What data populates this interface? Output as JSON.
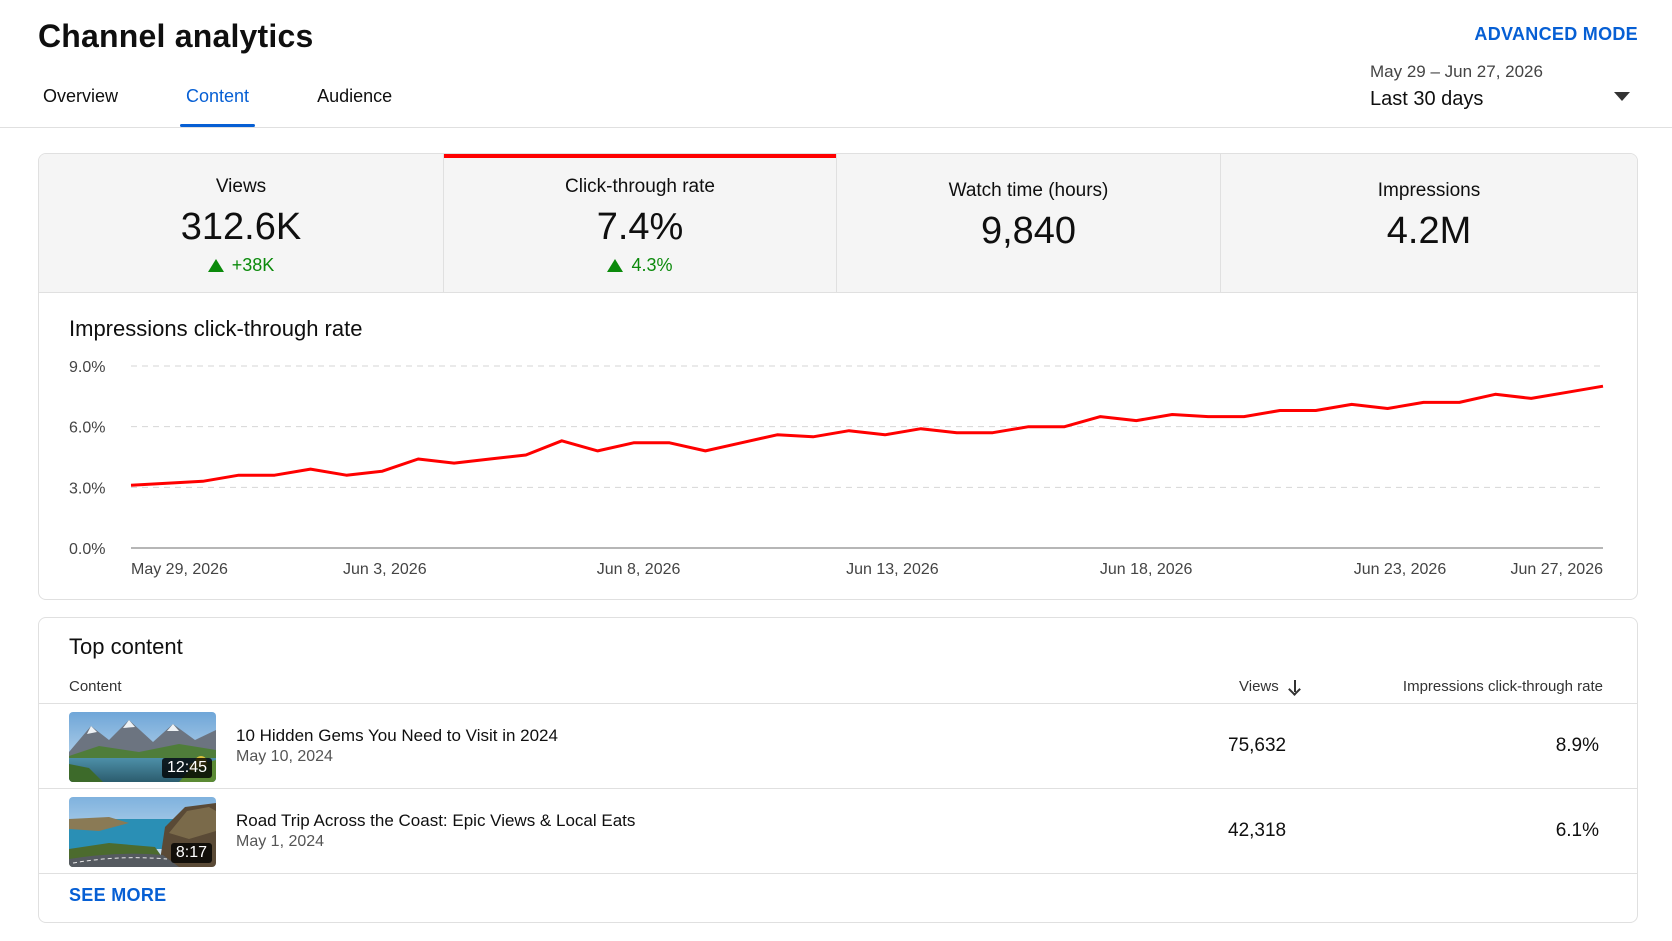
{
  "header": {
    "title": "Channel analytics",
    "advanced_mode": "ADVANCED MODE",
    "tabs": [
      {
        "label": "Overview",
        "active": false
      },
      {
        "label": "Content",
        "active": true
      },
      {
        "label": "Audience",
        "active": false
      }
    ],
    "date_picker": {
      "range": "May 29 – Jun 27, 2026",
      "preset": "Last 30 days"
    }
  },
  "metrics": [
    {
      "label": "Views",
      "value": "312.6K",
      "change": "+38K",
      "trend": "up"
    },
    {
      "label": "Click-through rate",
      "value": "7.4%",
      "change": "4.3%",
      "trend": "up",
      "selected": true
    },
    {
      "label": "Watch time (hours)",
      "value": "9,840"
    },
    {
      "label": "Impressions",
      "value": "4.2M"
    }
  ],
  "colors": {
    "accent": "#065fd4",
    "line": "#ff0000",
    "positive": "#0b8a0b"
  },
  "chart_data": {
    "type": "line",
    "title": "Impressions click-through rate",
    "y_tick_labels": [
      "9.0%",
      "6.0%",
      "3.0%",
      "0.0%"
    ],
    "y_ticks": [
      9,
      6,
      3,
      0
    ],
    "ylim": [
      0,
      9
    ],
    "x_tick_labels": [
      "May 29, 2026",
      "Jun 3, 2026",
      "Jun 8, 2026",
      "Jun 13, 2026",
      "Jun 18, 2026",
      "Jun 23, 2026",
      "Jun 27, 2026"
    ],
    "x_tick_days": [
      0,
      5,
      10,
      15,
      20,
      25,
      29
    ],
    "grid": true,
    "series": [
      {
        "values": [
          3.1,
          3.2,
          3.3,
          3.6,
          3.6,
          3.9,
          3.6,
          3.8,
          4.4,
          4.2,
          4.4,
          4.6,
          5.3,
          4.8,
          5.2,
          5.2,
          4.8,
          5.2,
          5.6,
          5.5,
          5.8,
          5.6,
          5.9,
          5.7,
          5.7,
          6.0,
          6.0,
          6.5,
          6.3,
          6.6,
          6.5,
          6.5,
          6.8,
          6.8,
          7.1,
          6.9,
          7.2,
          7.2,
          7.6,
          7.4,
          7.7,
          8.0
        ]
      }
    ]
  },
  "top_content": {
    "title": "Top content",
    "columns": {
      "content": "Content",
      "views": "Views",
      "ctr": "Impressions click-through rate"
    },
    "rows": [
      {
        "title": "10 Hidden Gems You Need to Visit in 2024",
        "date": "May 10, 2024",
        "duration": "12:45",
        "views": "75,632",
        "ctr": "8.9%"
      },
      {
        "title": "Road Trip Across the Coast: Epic Views & Local Eats",
        "date": "May 1, 2024",
        "duration": "8:17",
        "views": "42,318",
        "ctr": "6.1%"
      }
    ],
    "see_more": "SEE MORE"
  }
}
